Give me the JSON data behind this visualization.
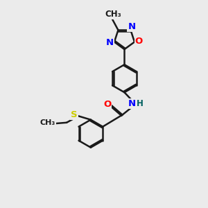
{
  "bg_color": "#ebebeb",
  "bond_color": "#1a1a1a",
  "bond_width": 1.8,
  "dbo": 0.055,
  "atom_colors": {
    "O": "#ff0000",
    "N": "#0000ff",
    "S": "#cccc00",
    "C": "#1a1a1a",
    "H": "#006060"
  },
  "font_size": 9.5
}
